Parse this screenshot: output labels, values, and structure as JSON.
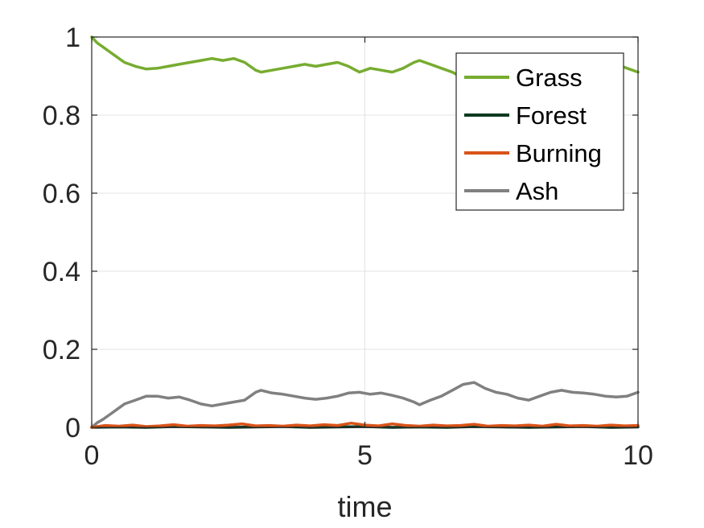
{
  "chart_data": {
    "type": "line",
    "title": "",
    "xlabel": "time",
    "ylabel": "",
    "xlim": [
      0,
      10
    ],
    "ylim": [
      0,
      1
    ],
    "xticks": [
      0,
      5,
      10
    ],
    "yticks": [
      0,
      0.2,
      0.4,
      0.6,
      0.8,
      1
    ],
    "xtick_labels": [
      "0",
      "5",
      "10"
    ],
    "ytick_labels": [
      "0",
      "0.2",
      "0.4",
      "0.6",
      "0.8",
      "1"
    ],
    "grid": true,
    "legend_position": "top-right",
    "series": [
      {
        "name": "Grass",
        "color": "#77ac30",
        "x": [
          0,
          0.1,
          0.2,
          0.3,
          0.45,
          0.6,
          0.8,
          1.0,
          1.2,
          1.4,
          1.6,
          1.8,
          2.0,
          2.2,
          2.4,
          2.6,
          2.8,
          3.0,
          3.1,
          3.3,
          3.5,
          3.7,
          3.9,
          4.1,
          4.3,
          4.5,
          4.7,
          4.9,
          5.1,
          5.3,
          5.5,
          5.7,
          5.9,
          6.0,
          6.2,
          6.4,
          6.6,
          6.8,
          7.0,
          7.2,
          7.4,
          7.6,
          7.8,
          8.0,
          8.2,
          8.4,
          8.6,
          8.8,
          9.0,
          9.2,
          9.4,
          9.6,
          9.8,
          10.0
        ],
        "values": [
          1.0,
          0.985,
          0.975,
          0.965,
          0.95,
          0.935,
          0.925,
          0.918,
          0.92,
          0.925,
          0.93,
          0.935,
          0.94,
          0.945,
          0.94,
          0.945,
          0.935,
          0.915,
          0.91,
          0.915,
          0.92,
          0.925,
          0.93,
          0.925,
          0.93,
          0.935,
          0.925,
          0.91,
          0.92,
          0.915,
          0.91,
          0.92,
          0.935,
          0.94,
          0.93,
          0.92,
          0.91,
          0.895,
          0.885,
          0.895,
          0.905,
          0.92,
          0.925,
          0.925,
          0.915,
          0.905,
          0.9,
          0.905,
          0.915,
          0.92,
          0.925,
          0.93,
          0.92,
          0.91
        ]
      },
      {
        "name": "Forest",
        "color": "#0e3a20",
        "x": [
          0,
          0.5,
          1.0,
          1.5,
          2.0,
          2.5,
          3.0,
          3.5,
          4.0,
          4.5,
          5.0,
          5.5,
          6.0,
          6.5,
          7.0,
          7.5,
          8.0,
          8.5,
          9.0,
          9.5,
          10.0
        ],
        "values": [
          0,
          0.001,
          0.0,
          0.002,
          0.001,
          0.0,
          0.001,
          0.002,
          0.0,
          0.001,
          0.002,
          0.0,
          0.001,
          0.0,
          0.002,
          0.001,
          0.0,
          0.001,
          0.002,
          0.0,
          0.001
        ]
      },
      {
        "name": "Burning",
        "color": "#d95319",
        "x": [
          0,
          0.25,
          0.5,
          0.75,
          1.0,
          1.25,
          1.5,
          1.75,
          2.0,
          2.25,
          2.5,
          2.75,
          3.0,
          3.25,
          3.5,
          3.75,
          4.0,
          4.25,
          4.5,
          4.75,
          5.0,
          5.25,
          5.5,
          5.75,
          6.0,
          6.25,
          6.5,
          6.75,
          7.0,
          7.25,
          7.5,
          7.75,
          8.0,
          8.25,
          8.5,
          8.75,
          9.0,
          9.25,
          9.5,
          9.75,
          10.0
        ],
        "values": [
          0,
          0.005,
          0.003,
          0.006,
          0.002,
          0.004,
          0.007,
          0.003,
          0.005,
          0.004,
          0.006,
          0.009,
          0.004,
          0.005,
          0.003,
          0.006,
          0.004,
          0.007,
          0.005,
          0.011,
          0.006,
          0.004,
          0.009,
          0.005,
          0.003,
          0.006,
          0.004,
          0.005,
          0.008,
          0.003,
          0.005,
          0.004,
          0.006,
          0.003,
          0.008,
          0.004,
          0.005,
          0.003,
          0.006,
          0.004,
          0.005
        ]
      },
      {
        "name": "Ash",
        "color": "#808080",
        "x": [
          0,
          0.1,
          0.2,
          0.3,
          0.45,
          0.6,
          0.8,
          1.0,
          1.2,
          1.4,
          1.6,
          1.8,
          2.0,
          2.2,
          2.4,
          2.6,
          2.8,
          3.0,
          3.1,
          3.3,
          3.5,
          3.7,
          3.9,
          4.1,
          4.3,
          4.5,
          4.7,
          4.9,
          5.1,
          5.3,
          5.5,
          5.7,
          5.9,
          6.0,
          6.2,
          6.4,
          6.6,
          6.8,
          7.0,
          7.2,
          7.4,
          7.6,
          7.8,
          8.0,
          8.2,
          8.4,
          8.6,
          8.8,
          9.0,
          9.2,
          9.4,
          9.6,
          9.8,
          10.0
        ],
        "values": [
          0.0,
          0.012,
          0.02,
          0.03,
          0.045,
          0.06,
          0.07,
          0.08,
          0.08,
          0.075,
          0.078,
          0.07,
          0.06,
          0.055,
          0.06,
          0.065,
          0.07,
          0.09,
          0.095,
          0.088,
          0.085,
          0.08,
          0.075,
          0.072,
          0.075,
          0.08,
          0.088,
          0.09,
          0.085,
          0.088,
          0.082,
          0.075,
          0.065,
          0.058,
          0.07,
          0.08,
          0.095,
          0.11,
          0.115,
          0.1,
          0.09,
          0.085,
          0.075,
          0.07,
          0.08,
          0.09,
          0.095,
          0.09,
          0.088,
          0.085,
          0.08,
          0.078,
          0.08,
          0.09
        ]
      }
    ]
  }
}
